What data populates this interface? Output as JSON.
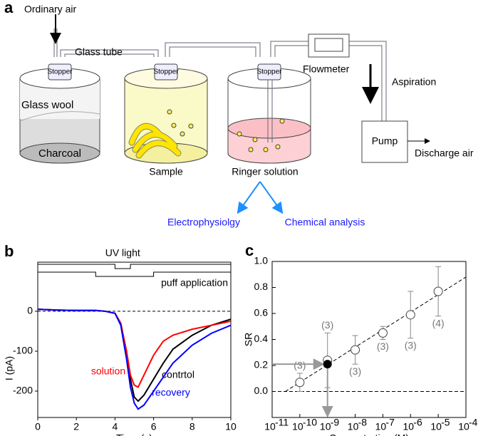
{
  "diagram": {
    "label": "a",
    "ordinary_air": "Ordinary air",
    "glass_tube": "Glass tube",
    "stoppers": [
      "Stopper",
      "Stopper",
      "Stopper"
    ],
    "glass_wool": "Glass wool",
    "charcoal": "Charcoal",
    "sample": "Sample",
    "ringer": "Ringer solution",
    "flowmeter": "Flowmeter",
    "aspiration": "Aspiration",
    "pump": "Pump",
    "discharge": "Discharge air",
    "electrophysiology": "Electrophysiolgy",
    "chemical": "Chemical analysis"
  },
  "chart_data": [
    {
      "type": "line",
      "label": "b",
      "x_label": "Time (s)",
      "y_label": "I (pA)",
      "uv_label": "UV light",
      "puff_label": "puff application",
      "uv_light": {
        "start": 4.0,
        "end": 4.8
      },
      "puff": {
        "start": 3.0,
        "end": 6.0
      },
      "reference_line": 0,
      "x": [
        0,
        1,
        2,
        3,
        3.5,
        4,
        4.3,
        4.6,
        4.8,
        5,
        5.2,
        5.5,
        6,
        6.5,
        7,
        8,
        9,
        10
      ],
      "series": [
        {
          "name": "contrtol",
          "color": "#000000",
          "values": [
            5,
            3,
            2,
            2,
            0,
            -5,
            -30,
            -110,
            -170,
            -215,
            -225,
            -210,
            -170,
            -130,
            -95,
            -60,
            -35,
            -20
          ]
        },
        {
          "name": "solution",
          "color": "#ff0000",
          "values": [
            5,
            3,
            2,
            2,
            0,
            -5,
            -30,
            -100,
            -160,
            -185,
            -190,
            -160,
            -110,
            -75,
            -60,
            -45,
            -35,
            -25
          ]
        },
        {
          "name": "recovery",
          "color": "#0000ff",
          "values": [
            5,
            3,
            2,
            2,
            0,
            -5,
            -35,
            -120,
            -190,
            -230,
            -245,
            -235,
            -200,
            -165,
            -130,
            -85,
            -55,
            -35
          ]
        }
      ],
      "xlim": [
        0,
        10
      ],
      "ylim": [
        -266,
        123
      ],
      "xticks": [
        0,
        2,
        4,
        6,
        8,
        10
      ],
      "yticks": [
        0,
        -100,
        -200
      ]
    },
    {
      "type": "scatter",
      "label": "c",
      "x_label": "Concentration (M)",
      "y_label": "SR",
      "log_x": true,
      "x": [
        1e-10,
        1e-09,
        1e-08,
        1e-07,
        1e-06,
        1e-05
      ],
      "values": [
        0.07,
        0.24,
        0.32,
        0.45,
        0.59,
        0.77
      ],
      "errors": [
        0.07,
        0.21,
        0.11,
        0.05,
        0.18,
        0.19
      ],
      "n_labels": [
        "(3)",
        "(3)",
        "(3)",
        "(3)",
        "(3)",
        "(4)"
      ],
      "estimate": {
        "x": 1e-09,
        "y": 0.21
      },
      "fit_line": {
        "x": [
          3e-11,
          0.0001
        ],
        "y": [
          0,
          0.88
        ]
      },
      "reference_line": 0,
      "xlim": [
        1e-11,
        0.0001
      ],
      "ylim": [
        -0.2,
        1.0
      ],
      "xticks": [
        {
          "value": 1e-11,
          "label": "10",
          "exponent": "-11"
        },
        {
          "value": 1e-10,
          "label": "10",
          "exponent": "-10"
        },
        {
          "value": 1e-09,
          "label": "10",
          "exponent": "-9"
        },
        {
          "value": 1e-08,
          "label": "10",
          "exponent": "-8"
        },
        {
          "value": 1e-07,
          "label": "10",
          "exponent": "-7"
        },
        {
          "value": 1e-06,
          "label": "10",
          "exponent": "-6"
        },
        {
          "value": 1e-05,
          "label": "10",
          "exponent": "-5"
        },
        {
          "value": 0.0001,
          "label": "10",
          "exponent": "-4"
        }
      ],
      "yticks": [
        {
          "value": 0,
          "label": "0.0"
        },
        {
          "value": 0.2,
          "label": "0.2"
        },
        {
          "value": 0.4,
          "label": "0.4"
        },
        {
          "value": 0.6,
          "label": "0.6"
        },
        {
          "value": 0.8,
          "label": "0.8"
        },
        {
          "value": 1.0,
          "label": "1.0"
        }
      ]
    }
  ]
}
